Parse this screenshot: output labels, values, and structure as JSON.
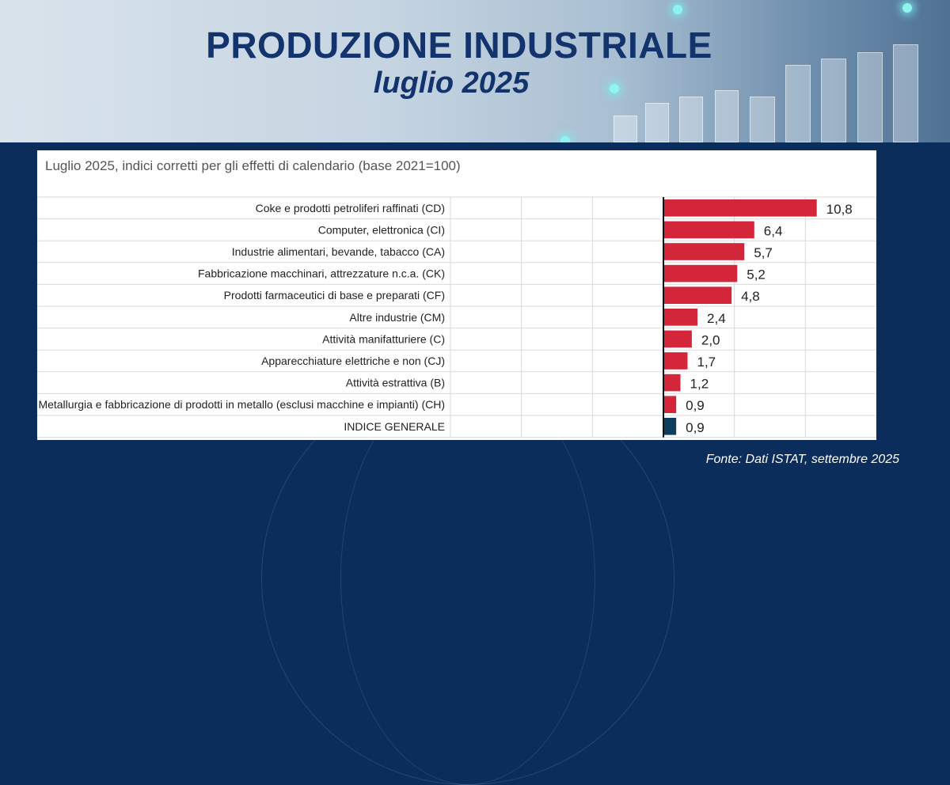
{
  "header": {
    "title": "PRODUZIONE INDUSTRIALE",
    "subtitle": "luglio 2025"
  },
  "footer": {
    "source": "Fonte: Dati ISTAT, settembre 2025"
  },
  "colors": {
    "bar": "#d4263a",
    "bar_total": "#0e3d5e",
    "header_title": "#12336b",
    "background": "#0b2d5b"
  },
  "chart_data": {
    "type": "bar",
    "orientation": "horizontal",
    "title": "Luglio 2025, indici corretti per gli effetti di calendario (base 2021=100)",
    "categories": [
      "Coke e prodotti petroliferi raffinati (CD)",
      "Computer, elettronica (CI)",
      "Industrie alimentari, bevande, tabacco (CA)",
      "Fabbricazione macchinari, attrezzature n.c.a. (CK)",
      "Prodotti farmaceutici di base e preparati (CF)",
      "Altre industrie (CM)",
      "Attività manifatturiere (C)",
      "Apparecchiature elettriche e non (CJ)",
      "Attività estrattiva (B)",
      "Metallurgia e fabbricazione di prodotti in metallo (esclusi macchine e impianti) (CH)",
      "INDICE GENERALE"
    ],
    "values": [
      10.8,
      6.4,
      5.7,
      5.2,
      4.8,
      2.4,
      2.0,
      1.7,
      1.2,
      0.9,
      0.9
    ],
    "value_labels": [
      "10,8",
      "6,4",
      "5,7",
      "5,2",
      "4,8",
      "2,4",
      "2,0",
      "1,7",
      "1,2",
      "0,9",
      "0,9"
    ],
    "highlight_last": true,
    "xlim": [
      -15,
      15
    ],
    "grid": true
  }
}
